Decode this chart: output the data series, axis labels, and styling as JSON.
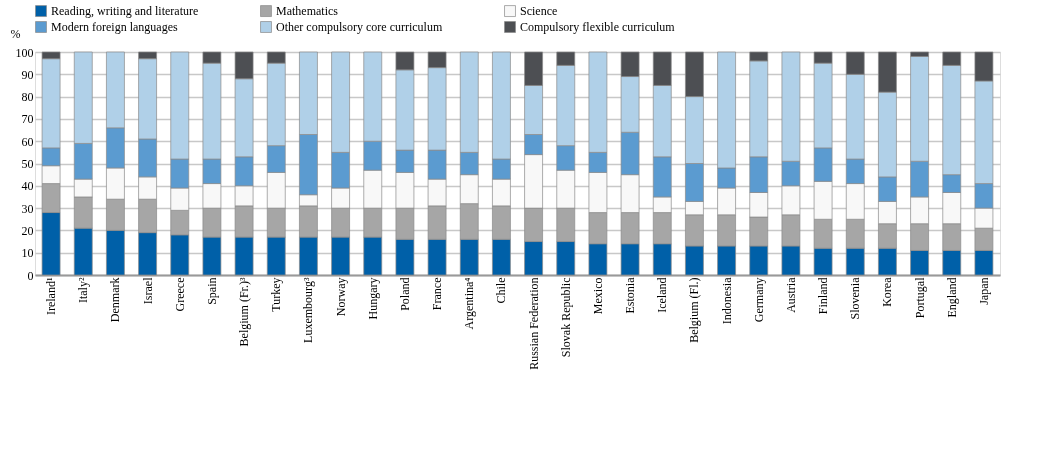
{
  "chart_data": {
    "type": "bar",
    "stacked": true,
    "ylabel": "%",
    "categories": [
      "Ireland¹",
      "Italy²",
      "Denmark",
      "Israel",
      "Greece",
      "Spain",
      "Belgium (Fr.)³",
      "Turkey",
      "Luxembourg³",
      "Norway",
      "Hungary",
      "Poland",
      "France",
      "Argentina⁴",
      "Chile",
      "Russian Federation",
      "Slovak Republic",
      "Mexico",
      "Estonia",
      "Iceland",
      "Belgium (Fl.)",
      "Indonesia",
      "Germany",
      "Austria",
      "Finland",
      "Slovenia",
      "Korea",
      "Portugal",
      "England",
      "Japan"
    ],
    "series": [
      {
        "name": "Reading, writing and literature",
        "color": "#0060a8",
        "values": [
          28,
          21,
          20,
          19,
          18,
          17,
          17,
          17,
          17,
          17,
          17,
          16,
          16,
          16,
          16,
          15,
          15,
          14,
          14,
          14,
          13,
          13,
          13,
          13,
          12,
          12,
          12,
          11,
          11,
          11
        ]
      },
      {
        "name": "Mathematics",
        "color": "#a6a6a6",
        "values": [
          13,
          14,
          14,
          15,
          11,
          13,
          14,
          13,
          14,
          13,
          13,
          14,
          15,
          16,
          15,
          15,
          15,
          14,
          14,
          14,
          14,
          14,
          13,
          14,
          13,
          13,
          11,
          12,
          12,
          10
        ]
      },
      {
        "name": "Science",
        "color": "#f8f8f8",
        "values": [
          8,
          8,
          14,
          10,
          10,
          11,
          9,
          16,
          5,
          9,
          17,
          16,
          12,
          13,
          12,
          24,
          17,
          18,
          17,
          7,
          6,
          12,
          11,
          13,
          17,
          16,
          10,
          12,
          14,
          9
        ]
      },
      {
        "name": "Modern foreign languages",
        "color": "#5b9bd0",
        "values": [
          8,
          16,
          18,
          17,
          13,
          11,
          13,
          12,
          27,
          16,
          13,
          10,
          13,
          10,
          9,
          9,
          11,
          9,
          19,
          18,
          17,
          9,
          16,
          11,
          15,
          11,
          11,
          16,
          8,
          11
        ]
      },
      {
        "name": "Other compulsory core curriculum",
        "color": "#b0d0e8",
        "values": [
          40,
          41,
          34,
          36,
          48,
          43,
          35,
          37,
          37,
          45,
          40,
          36,
          37,
          45,
          48,
          22,
          36,
          45,
          25,
          32,
          30,
          52,
          43,
          49,
          38,
          38,
          38,
          47,
          49,
          46
        ]
      },
      {
        "name": "Compulsory flexible curriculum",
        "color": "#4d4f53",
        "values": [
          3,
          null,
          null,
          3,
          null,
          5,
          12,
          5,
          null,
          null,
          null,
          8,
          7,
          null,
          null,
          15,
          6,
          null,
          11,
          15,
          20,
          null,
          4,
          null,
          5,
          10,
          18,
          2,
          6,
          13
        ]
      }
    ],
    "ylim": [
      0,
      100
    ],
    "yticks": [
      0,
      10,
      20,
      30,
      40,
      50,
      60,
      70,
      80,
      90,
      100
    ],
    "grid": "y",
    "legend": "top"
  }
}
